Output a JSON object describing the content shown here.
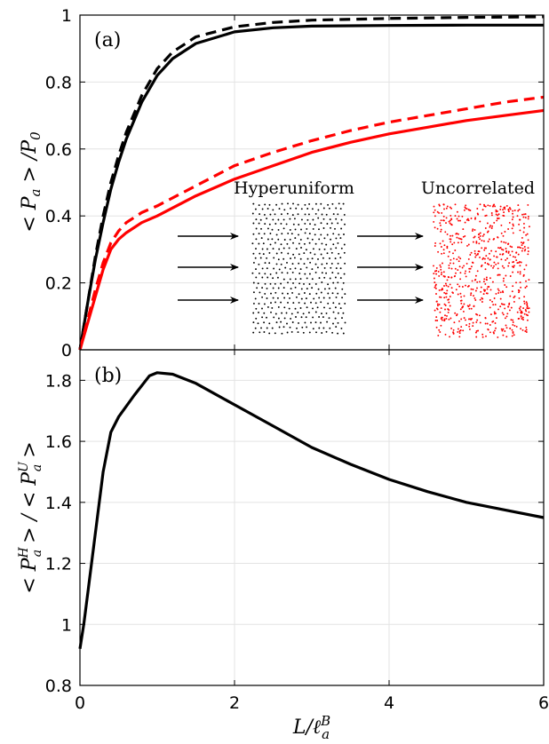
{
  "chart_data": [
    {
      "panel_label": "(a)",
      "type": "line",
      "xlim": [
        0,
        6
      ],
      "ylim": [
        0,
        1
      ],
      "x_ticks": [
        "0",
        "2",
        "4",
        "6"
      ],
      "y_ticks": [
        "0",
        "0.2",
        "0.4",
        "0.6",
        "0.8",
        "1"
      ],
      "ylabel": "< P_a > /P_0",
      "grid": true,
      "series": [
        {
          "style": "solid",
          "color": "#000000",
          "x": [
            0,
            0.1,
            0.2,
            0.3,
            0.4,
            0.5,
            0.6,
            0.8,
            1.0,
            1.2,
            1.5,
            2.0,
            2.5,
            3.0,
            4.0,
            5.0,
            6.0
          ],
          "y": [
            0.0,
            0.14,
            0.27,
            0.38,
            0.48,
            0.56,
            0.63,
            0.74,
            0.82,
            0.87,
            0.915,
            0.95,
            0.962,
            0.967,
            0.969,
            0.97,
            0.97
          ]
        },
        {
          "style": "dashed",
          "color": "#000000",
          "x": [
            0,
            0.1,
            0.2,
            0.3,
            0.4,
            0.5,
            0.6,
            0.8,
            1.0,
            1.2,
            1.5,
            2.0,
            2.5,
            3.0,
            4.0,
            5.0,
            6.0
          ],
          "y": [
            0.0,
            0.14,
            0.28,
            0.4,
            0.5,
            0.58,
            0.65,
            0.76,
            0.84,
            0.89,
            0.935,
            0.965,
            0.978,
            0.985,
            0.99,
            0.993,
            0.995
          ]
        },
        {
          "style": "solid",
          "color": "#ff0000",
          "x": [
            0,
            0.1,
            0.2,
            0.3,
            0.4,
            0.5,
            0.6,
            0.8,
            1.0,
            1.5,
            2.0,
            2.5,
            3.0,
            3.5,
            4.0,
            4.5,
            5.0,
            5.5,
            6.0
          ],
          "y": [
            0.0,
            0.08,
            0.16,
            0.24,
            0.3,
            0.33,
            0.35,
            0.38,
            0.4,
            0.46,
            0.51,
            0.55,
            0.59,
            0.62,
            0.645,
            0.665,
            0.685,
            0.7,
            0.715
          ]
        },
        {
          "style": "dashed",
          "color": "#ff0000",
          "x": [
            0,
            0.1,
            0.2,
            0.3,
            0.4,
            0.5,
            0.6,
            0.8,
            1.0,
            1.5,
            2.0,
            2.5,
            3.0,
            3.5,
            4.0,
            4.5,
            5.0,
            5.5,
            6.0
          ],
          "y": [
            0.0,
            0.09,
            0.18,
            0.26,
            0.32,
            0.355,
            0.38,
            0.41,
            0.43,
            0.49,
            0.55,
            0.59,
            0.625,
            0.655,
            0.68,
            0.7,
            0.72,
            0.74,
            0.755
          ]
        }
      ],
      "inset": {
        "left_label": "Hyperuniform",
        "right_label": "Uncorrelated",
        "left_dot_color": "#000000",
        "right_dot_color": "#ff0000"
      }
    },
    {
      "panel_label": "(b)",
      "type": "line",
      "xlim": [
        0,
        6
      ],
      "ylim": [
        0.8,
        1.9
      ],
      "x_ticks": [
        "0",
        "2",
        "4",
        "6"
      ],
      "y_ticks": [
        "0.8",
        "1",
        "1.2",
        "1.4",
        "1.6",
        "1.8"
      ],
      "ylabel": "< P_a^H > / < P_a^U >",
      "xlabel": "L/ℓ_a^B",
      "grid": true,
      "series": [
        {
          "style": "solid",
          "color": "#000000",
          "x": [
            0,
            0.05,
            0.1,
            0.2,
            0.3,
            0.4,
            0.5,
            0.7,
            0.9,
            1.0,
            1.2,
            1.5,
            2.0,
            2.5,
            3.0,
            3.5,
            4.0,
            4.5,
            5.0,
            5.5,
            6.0
          ],
          "y": [
            0.92,
            1.0,
            1.1,
            1.3,
            1.5,
            1.63,
            1.68,
            1.75,
            1.815,
            1.825,
            1.82,
            1.79,
            1.72,
            1.65,
            1.58,
            1.525,
            1.475,
            1.435,
            1.4,
            1.375,
            1.35
          ]
        }
      ]
    }
  ]
}
